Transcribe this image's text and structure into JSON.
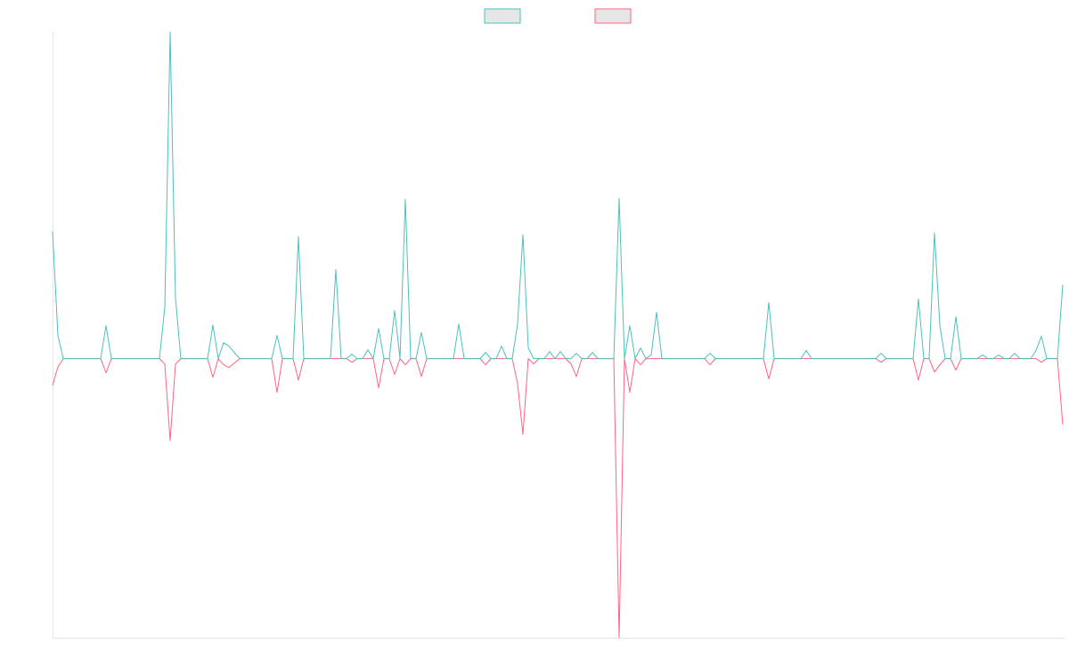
{
  "chart_data": {
    "type": "line",
    "legend": "top",
    "ylim": [
      -100,
      117
    ],
    "series": [
      {
        "color": "#4bc0c0",
        "values": [
          45.6,
          8.3,
          0,
          0,
          0,
          0,
          0,
          0,
          0,
          0,
          11.8,
          0,
          0,
          0,
          0,
          0,
          0,
          0,
          0,
          0,
          0,
          18.5,
          117,
          21.7,
          0,
          0,
          0,
          0,
          0,
          0,
          12,
          0,
          5.7,
          4.5,
          2.2,
          0,
          0,
          0,
          0,
          0,
          0,
          0,
          8.3,
          0,
          0,
          0,
          43.7,
          0,
          0,
          0,
          0,
          0,
          0,
          31.9,
          0,
          0,
          1.6,
          0,
          0,
          3.2,
          0,
          10.8,
          0,
          0,
          17.2,
          0,
          57.1,
          0,
          0,
          9.3,
          0,
          0,
          0,
          0,
          0,
          0,
          12.4,
          0,
          0,
          0,
          0,
          2.2,
          0,
          0,
          4.5,
          0,
          0,
          12.4,
          44.4,
          3.8,
          0,
          0,
          0,
          2.5,
          0,
          2.5,
          0,
          0,
          1.9,
          0,
          0,
          2.2,
          0,
          0,
          0,
          0,
          57.4,
          0,
          11.8,
          0,
          3.8,
          0,
          1.3,
          16.6,
          0,
          0,
          0,
          0,
          0,
          0,
          0,
          0,
          0,
          1.9,
          0,
          0,
          0,
          0,
          0,
          0,
          0,
          0,
          0,
          0,
          20.1,
          0,
          0,
          0,
          0,
          0,
          0,
          2.9,
          0,
          0,
          0,
          0,
          0,
          0,
          0,
          0,
          0,
          0,
          0,
          0,
          0,
          1.9,
          0,
          0,
          0,
          0,
          0,
          0,
          21.4,
          0,
          0,
          45,
          11.8,
          0,
          0,
          15,
          0,
          0,
          0,
          0,
          1.3,
          0,
          0,
          1.3,
          0,
          0,
          1.9,
          0,
          0,
          0,
          2.9,
          8,
          0,
          0,
          0,
          26.5
        ]
      },
      {
        "color": "#ff6384",
        "values": [
          -9.6,
          -3,
          0,
          0,
          0,
          0,
          0,
          0,
          0,
          0,
          -5.1,
          0,
          0,
          0,
          0,
          0,
          0,
          0,
          0,
          0,
          0,
          -2,
          -29.4,
          -2,
          0,
          0,
          0,
          0,
          0,
          0,
          -6.7,
          0,
          -2.2,
          -3.2,
          -1.6,
          0,
          0,
          0,
          0,
          0,
          0,
          0,
          -12.1,
          0,
          0,
          0,
          -7.7,
          0,
          0,
          0,
          0,
          0,
          0,
          0,
          0,
          0,
          -1.3,
          0,
          0,
          0,
          0,
          -10.5,
          0,
          0,
          -5.7,
          0,
          -2.2,
          0,
          0,
          -6.4,
          0,
          0,
          0,
          0,
          0,
          0,
          0,
          0,
          0,
          0,
          0,
          -2.2,
          0,
          0,
          0,
          0,
          0,
          -8.9,
          -27.1,
          0,
          -1.9,
          0,
          0,
          0,
          0,
          0,
          0,
          -1.9,
          -6.4,
          0,
          0,
          0,
          0,
          0,
          0,
          0,
          -100,
          0,
          -12.1,
          0,
          -2.2,
          0,
          0,
          0,
          0,
          0,
          0,
          0,
          0,
          0,
          0,
          0,
          0,
          -2.2,
          0,
          0,
          0,
          0,
          0,
          0,
          0,
          0,
          0,
          0,
          -7.3,
          0,
          0,
          0,
          0,
          0,
          0,
          0,
          0,
          0,
          0,
          0,
          0,
          0,
          0,
          0,
          0,
          0,
          0,
          0,
          0,
          -1.3,
          0,
          0,
          0,
          0,
          0,
          0,
          -7.7,
          0,
          0,
          -4.8,
          -2.2,
          0,
          0,
          -4.1,
          0,
          0,
          0,
          0,
          0,
          0,
          0,
          0,
          0,
          0,
          0,
          0,
          0,
          0,
          0,
          -1.3,
          0,
          0,
          0,
          -23.6
        ]
      }
    ]
  }
}
